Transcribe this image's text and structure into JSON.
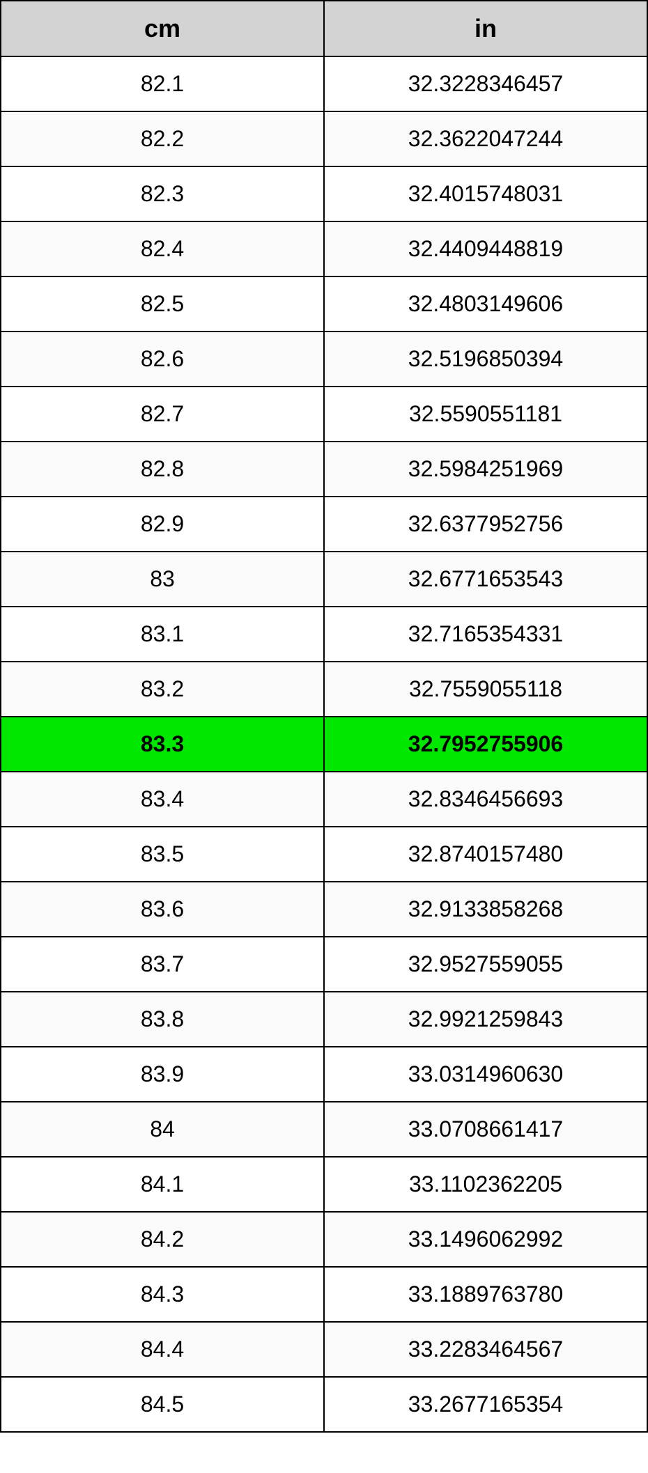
{
  "table": {
    "type": "table",
    "columns": [
      {
        "header": "cm",
        "align": "center"
      },
      {
        "header": "in",
        "align": "center"
      }
    ],
    "header_background_color": "#d3d3d3",
    "header_fontsize": 36,
    "header_fontweight": "bold",
    "cell_fontsize": 32,
    "border_color": "#000000",
    "border_width": 2,
    "row_background_odd": "#ffffff",
    "row_background_even": "#fafafa",
    "highlight_background": "#00e700",
    "highlight_fontweight": "bold",
    "highlighted_row_index": 12,
    "rows": [
      {
        "cm": "82.1",
        "in": "32.3228346457"
      },
      {
        "cm": "82.2",
        "in": "32.3622047244"
      },
      {
        "cm": "82.3",
        "in": "32.4015748031"
      },
      {
        "cm": "82.4",
        "in": "32.4409448819"
      },
      {
        "cm": "82.5",
        "in": "32.4803149606"
      },
      {
        "cm": "82.6",
        "in": "32.5196850394"
      },
      {
        "cm": "82.7",
        "in": "32.5590551181"
      },
      {
        "cm": "82.8",
        "in": "32.5984251969"
      },
      {
        "cm": "82.9",
        "in": "32.6377952756"
      },
      {
        "cm": "83",
        "in": "32.6771653543"
      },
      {
        "cm": "83.1",
        "in": "32.7165354331"
      },
      {
        "cm": "83.2",
        "in": "32.7559055118"
      },
      {
        "cm": "83.3",
        "in": "32.7952755906"
      },
      {
        "cm": "83.4",
        "in": "32.8346456693"
      },
      {
        "cm": "83.5",
        "in": "32.8740157480"
      },
      {
        "cm": "83.6",
        "in": "32.9133858268"
      },
      {
        "cm": "83.7",
        "in": "32.9527559055"
      },
      {
        "cm": "83.8",
        "in": "32.9921259843"
      },
      {
        "cm": "83.9",
        "in": "33.0314960630"
      },
      {
        "cm": "84",
        "in": "33.0708661417"
      },
      {
        "cm": "84.1",
        "in": "33.1102362205"
      },
      {
        "cm": "84.2",
        "in": "33.1496062992"
      },
      {
        "cm": "84.3",
        "in": "33.1889763780"
      },
      {
        "cm": "84.4",
        "in": "33.2283464567"
      },
      {
        "cm": "84.5",
        "in": "33.2677165354"
      }
    ]
  }
}
